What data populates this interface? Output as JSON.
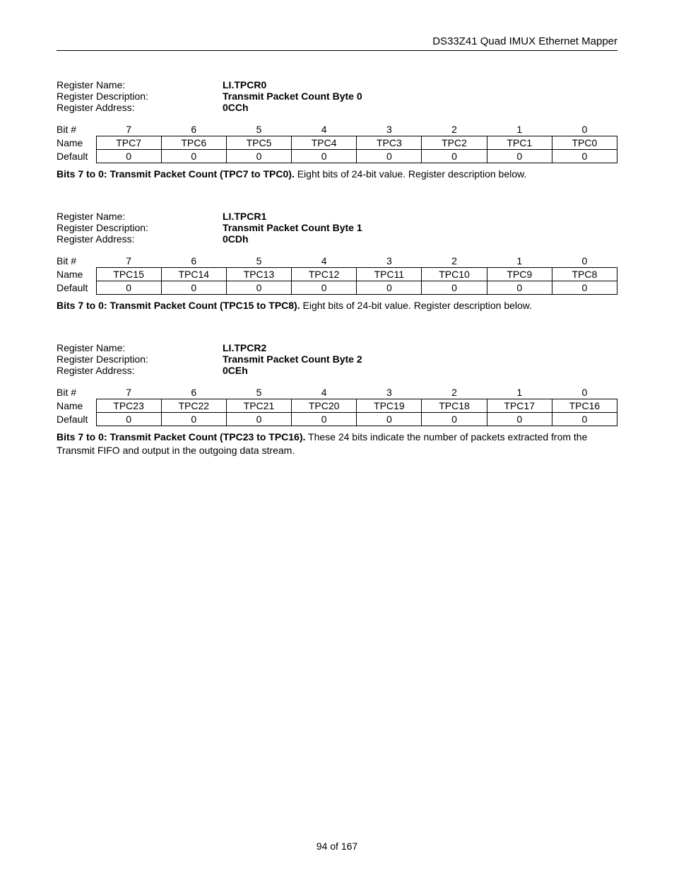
{
  "header": {
    "title": "DS33Z41 Quad IMUX Ethernet Mapper"
  },
  "registers": [
    {
      "name_label": "Register Name:",
      "name": "LI.TPCR0",
      "desc_label": "Register Description:",
      "desc": "Transmit Packet Count Byte 0",
      "addr_label": "Register Address:",
      "addr": "0CCh",
      "bit_header": "Bit #",
      "bits": [
        "7",
        "6",
        "5",
        "4",
        "3",
        "2",
        "1",
        "0"
      ],
      "name_row_label": "Name",
      "names": [
        "TPC7",
        "TPC6",
        "TPC5",
        "TPC4",
        "TPC3",
        "TPC2",
        "TPC1",
        "TPC0"
      ],
      "default_label": "Default",
      "defaults": [
        "0",
        "0",
        "0",
        "0",
        "0",
        "0",
        "0",
        "0"
      ],
      "note_lead": "Bits 7 to 0: Transmit Packet Count (TPC7 to TPC0).",
      "note_rest": " Eight bits of 24-bit value. Register description below."
    },
    {
      "name_label": "Register Name:",
      "name": "LI.TPCR1",
      "desc_label": "Register Description:",
      "desc": "Transmit Packet Count Byte 1",
      "addr_label": "Register Address:",
      "addr": "0CDh",
      "bit_header": "Bit #",
      "bits": [
        "7",
        "6",
        "5",
        "4",
        "3",
        "2",
        "1",
        "0"
      ],
      "name_row_label": "Name",
      "names": [
        "TPC15",
        "TPC14",
        "TPC13",
        "TPC12",
        "TPC11",
        "TPC10",
        "TPC9",
        "TPC8"
      ],
      "default_label": "Default",
      "defaults": [
        "0",
        "0",
        "0",
        "0",
        "0",
        "0",
        "0",
        "0"
      ],
      "note_lead": "Bits 7 to 0: Transmit Packet Count (TPC15 to TPC8).",
      "note_rest": " Eight bits of 24-bit value. Register description below."
    },
    {
      "name_label": "Register Name:",
      "name": "LI.TPCR2",
      "desc_label": "Register Description:",
      "desc": "Transmit Packet Count Byte 2",
      "addr_label": "Register Address:",
      "addr": "0CEh",
      "bit_header": "Bit #",
      "bits": [
        "7",
        "6",
        "5",
        "4",
        "3",
        "2",
        "1",
        "0"
      ],
      "name_row_label": "Name",
      "names": [
        "TPC23",
        "TPC22",
        "TPC21",
        "TPC20",
        "TPC19",
        "TPC18",
        "TPC17",
        "TPC16"
      ],
      "default_label": "Default",
      "defaults": [
        "0",
        "0",
        "0",
        "0",
        "0",
        "0",
        "0",
        "0"
      ],
      "note_lead": "Bits 7 to 0: Transmit Packet Count (TPC23 to TPC16).",
      "note_rest": " These 24 bits indicate the number of packets extracted from the Transmit FIFO and output in the outgoing data stream."
    }
  ],
  "footer": {
    "page": "94 of 167"
  }
}
